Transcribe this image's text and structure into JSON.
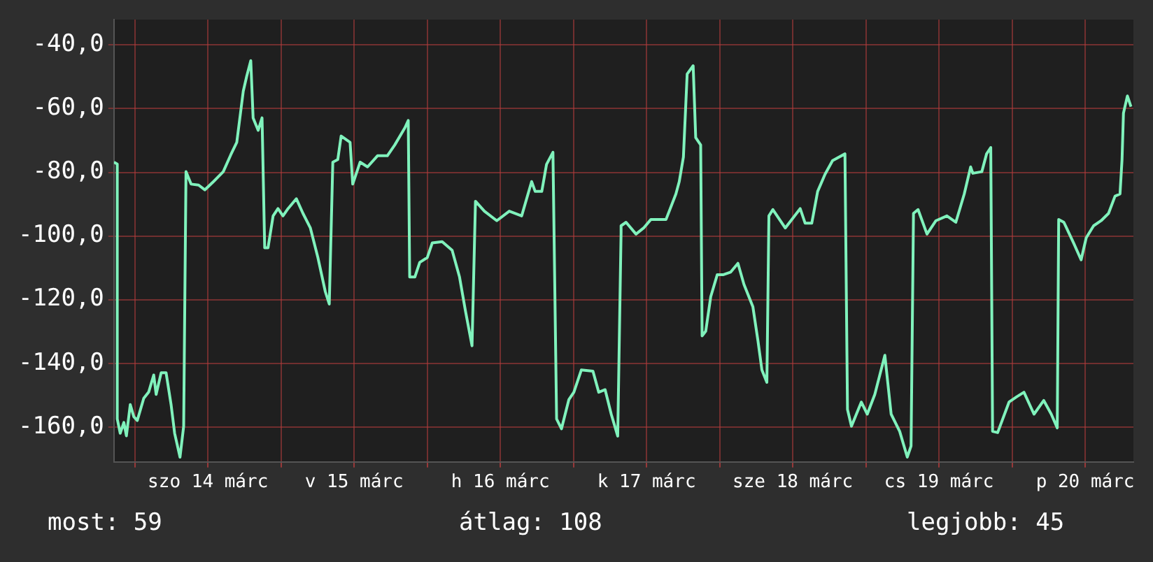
{
  "chart_data": {
    "type": "line",
    "x": [
      "--03-13T20:34",
      "--03-13T21:07",
      "--03-13T21:07",
      "--03-13T21:36",
      "--03-13T22:12",
      "--03-13T22:37",
      "--03-13T23:15",
      "--03-13T23:50",
      "--03-14T00:24",
      "--03-14T01:28",
      "--03-14T02:17",
      "--03-14T03:06",
      "--03-14T03:30",
      "--03-14T04:19",
      "--03-14T05:08",
      "--03-14T05:57",
      "--03-14T06:32",
      "--03-14T07:25",
      "--03-14T08:01",
      "--03-14T08:24",
      "--03-14T09:14",
      "--03-14T10:28",
      "--03-14T11:30",
      "--03-14T12:55",
      "--03-14T14:31",
      "--03-14T15:45",
      "--03-14T16:44",
      "--03-14T17:48",
      "--03-14T18:22",
      "--03-14T19:02",
      "--03-14T19:25",
      "--03-14T20:15",
      "--03-14T20:53",
      "--03-14T21:19",
      "--03-14T21:52",
      "--03-14T22:42",
      "--03-14T23:30",
      "--03-15T00:19",
      "--03-15T01:09",
      "--03-15T02:31",
      "--03-15T03:36",
      "--03-15T04:49",
      "--03-15T06:03",
      "--03-15T07:16",
      "--03-15T07:55",
      "--03-15T08:30",
      "--03-15T09:19",
      "--03-15T09:52",
      "--03-15T11:20",
      "--03-15T11:46",
      "--03-15T12:59",
      "--03-15T14:12",
      "--03-15T15:50",
      "--03-15T17:27",
      "--03-15T18:40",
      "--03-15T20:20",
      "--03-15T20:53",
      "--03-15T21:07",
      "--03-15T21:58",
      "--03-15T22:46",
      "--03-16T00:00",
      "--03-16T00:49",
      "--03-16T02:27",
      "--03-16T04:05",
      "--03-16T05:18",
      "--03-16T06:17",
      "--03-16T07:21",
      "--03-16T07:55",
      "--03-16T09:23",
      "--03-16T11:25",
      "--03-16T13:28",
      "--03-16T15:30",
      "--03-16T17:08",
      "--03-16T17:43",
      "--03-16T18:48",
      "--03-16T19:35",
      "--03-16T20:38",
      "--03-16T21:14",
      "--03-16T22:02",
      "--03-16T23:15",
      "--03-17T00:04",
      "--03-17T01:18",
      "--03-17T03:12",
      "--03-17T04:09",
      "--03-17T05:12",
      "--03-17T06:12",
      "--03-17T07:16",
      "--03-17T07:49",
      "--03-17T07:49",
      "--03-17T08:38",
      "--03-17T10:16",
      "--03-17T11:31",
      "--03-17T12:43",
      "--03-17T15:12",
      "--03-17T16:49",
      "--03-17T17:22",
      "--03-17T18:03",
      "--03-17T18:40",
      "--03-17T19:39",
      "--03-17T20:04",
      "--03-17T20:53",
      "--03-17T21:07",
      "--03-17T21:43",
      "--03-17T22:32",
      "--03-17T23:36",
      "--03-18T00:33",
      "--03-18T01:47",
      "--03-18T03:00",
      "--03-18T03:59",
      "--03-18T05:27",
      "--03-18T06:17",
      "--03-18T06:56",
      "--03-18T07:45",
      "--03-18T08:05",
      "--03-18T08:44",
      "--03-18T10:46",
      "--03-18T13:13",
      "--03-18T14:02",
      "--03-18T15:07",
      "--03-18T16:05",
      "--03-18T17:18",
      "--03-18T18:32",
      "--03-18T20:34",
      "--03-18T20:59",
      "--03-18T21:38",
      "--03-18T23:15",
      "--03-19T00:14",
      "--03-19T01:28",
      "--03-19T03:07",
      "--03-19T04:09",
      "--03-19T05:33",
      "--03-19T06:48",
      "--03-19T07:25",
      "--03-19T07:49",
      "--03-19T08:34",
      "--03-19T10:02",
      "--03-19T11:30",
      "--03-19T13:18",
      "--03-19T14:46",
      "--03-19T16:09",
      "--03-19T17:12",
      "--03-19T17:33",
      "--03-19T19:02",
      "--03-19T19:49",
      "--03-19T20:30",
      "--03-19T20:48",
      "--03-19T21:38",
      "--03-19T23:30",
      "--03-20T00:43",
      "--03-20T01:57",
      "--03-20T03:36",
      "--03-20T05:12",
      "--03-20T06:26",
      "--03-20T07:25",
      "--03-20T07:39",
      "--03-20T08:30",
      "--03-20T10:06",
      "--03-20T11:20",
      "--03-20T12:10",
      "--03-20T13:23",
      "--03-20T14:37",
      "--03-20T15:50",
      "--03-20T16:54",
      "--03-20T17:43",
      "--03-20T18:03",
      "--03-20T18:17",
      "--03-20T18:56",
      "--03-20T19:31"
    ],
    "series": [
      {
        "color": "#80f2bc",
        "values": [
          -76.8,
          -77.4,
          -157.5,
          -162,
          -158.6,
          -162.8,
          -153,
          -156.8,
          -158,
          -151,
          -149,
          -143.7,
          -149.8,
          -143,
          -143,
          -153,
          -162,
          -169.5,
          -159.8,
          -79.8,
          -83.7,
          -84,
          -85.5,
          -82.9,
          -79.8,
          -74.5,
          -70.6,
          -54.5,
          -49.8,
          -44.9,
          -62.9,
          -66.8,
          -62.9,
          -103.7,
          -103.7,
          -93.7,
          -91.4,
          -93.7,
          -91.4,
          -88.3,
          -92.9,
          -97.5,
          -106.8,
          -117.5,
          -121.4,
          -76.8,
          -76,
          -68.6,
          -70.6,
          -83.7,
          -76.8,
          -78.3,
          -74.8,
          -74.8,
          -71.4,
          -66,
          -63.7,
          -112.9,
          -112.9,
          -108.3,
          -106.8,
          -102.2,
          -101.8,
          -104.5,
          -112.9,
          -123.7,
          -134.5,
          -89.1,
          -92.2,
          -95.2,
          -92.2,
          -93.7,
          -82.9,
          -86,
          -86,
          -77.5,
          -73.7,
          -157.5,
          -160.6,
          -151.4,
          -149.1,
          -142.1,
          -142.5,
          -149.1,
          -148.3,
          -156,
          -162.9,
          -99.1,
          -96.8,
          -95.7,
          -99.4,
          -97.5,
          -94.8,
          -94.8,
          -86.8,
          -82.9,
          -75.2,
          -49.1,
          -46.5,
          -69.1,
          -71.4,
          -131.4,
          -129.9,
          -119.1,
          -112.2,
          -112.2,
          -111.4,
          -108.6,
          -115.2,
          -122.2,
          -132.9,
          -142.1,
          -146,
          -93.7,
          -91.7,
          -97.5,
          -91.4,
          -96,
          -96,
          -86,
          -80.6,
          -76.3,
          -74.2,
          -154.5,
          -159.8,
          -152.2,
          -156,
          -149.8,
          -137.5,
          -156,
          -161.4,
          -169.5,
          -166,
          -92.9,
          -91.7,
          -99.4,
          -95.2,
          -93.7,
          -95.7,
          -86.8,
          -78.3,
          -80.3,
          -79.8,
          -74.2,
          -72.2,
          -161.4,
          -161.8,
          -152.2,
          -150.6,
          -149.1,
          -156,
          -151.7,
          -156,
          -160.3,
          -94.8,
          -95.7,
          -102.2,
          -107.5,
          -100.6,
          -96.8,
          -95.2,
          -92.9,
          -87.5,
          -86.8,
          -76,
          -61.4,
          -56,
          -59.4
        ]
      }
    ],
    "xlim": [
      "--03-13T20:34",
      "--03-20T19:55"
    ],
    "xticks": [
      {
        "value": "--03-14T00:00",
        "label": null
      },
      {
        "value": "--03-14T12:00",
        "label": "szo 14 márc"
      },
      {
        "value": "--03-15T00:00",
        "label": null
      },
      {
        "value": "--03-15T12:00",
        "label": "v 15 márc"
      },
      {
        "value": "--03-16T00:00",
        "label": null
      },
      {
        "value": "--03-16T12:00",
        "label": "h 16 márc"
      },
      {
        "value": "--03-17T00:00",
        "label": null
      },
      {
        "value": "--03-17T12:00",
        "label": "k 17 márc"
      },
      {
        "value": "--03-18T00:00",
        "label": null
      },
      {
        "value": "--03-18T12:00",
        "label": "sze 18 márc"
      },
      {
        "value": "--03-19T00:00",
        "label": null
      },
      {
        "value": "--03-19T12:00",
        "label": "cs 19 márc"
      },
      {
        "value": "--03-20T00:00",
        "label": null
      },
      {
        "value": "--03-20T12:00",
        "label": "p 20 márc"
      }
    ],
    "ylim": [
      -171,
      -32
    ],
    "yticks": [
      {
        "value": -40,
        "label": "-40,0"
      },
      {
        "value": -60,
        "label": "-60,0"
      },
      {
        "value": -80,
        "label": "-80,0"
      },
      {
        "value": -100,
        "label": "-100,0"
      },
      {
        "value": -120,
        "label": "-120,0"
      },
      {
        "value": -140,
        "label": "-140,0"
      },
      {
        "value": -160,
        "label": "-160,0"
      }
    ],
    "grid": true,
    "legend": false,
    "marker": "none",
    "line_style": "solid",
    "annotations": [
      "most: 59",
      "átlag: 108",
      "legjobb: 45"
    ]
  }
}
